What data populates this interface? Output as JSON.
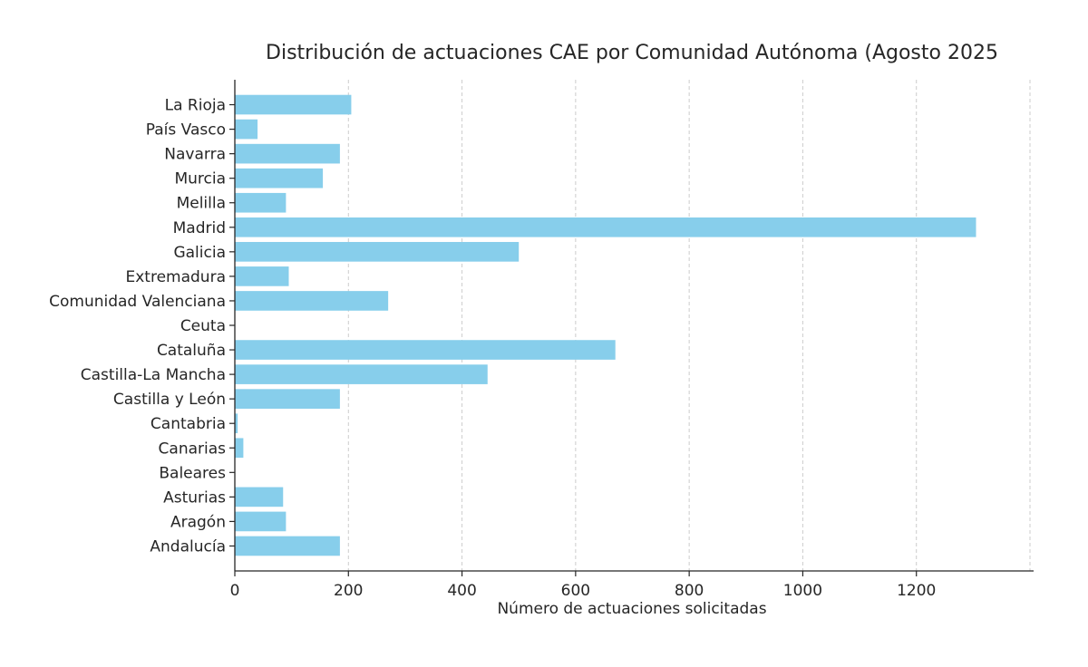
{
  "chart_data": {
    "type": "bar",
    "orientation": "horizontal",
    "title": "Distribución de actuaciones CAE por Comunidad Autónoma (Agosto 2025",
    "xlabel": "Número de actuaciones solicitadas",
    "ylabel": "",
    "categories": [
      "La Rioja",
      "País Vasco",
      "Navarra",
      "Murcia",
      "Melilla",
      "Madrid",
      "Galicia",
      "Extremadura",
      "Comunidad Valenciana",
      "Ceuta",
      "Cataluña",
      "Castilla-La Mancha",
      "Castilla y León",
      "Cantabria",
      "Canarias",
      "Baleares",
      "Asturias",
      "Aragón",
      "Andalucía"
    ],
    "values": [
      205,
      40,
      185,
      155,
      90,
      1305,
      500,
      95,
      270,
      0,
      670,
      445,
      185,
      5,
      15,
      0,
      85,
      90,
      185
    ],
    "categories_order": "top-to-bottom",
    "xlim": [
      0,
      1400
    ],
    "xticks": [
      0,
      200,
      400,
      600,
      800,
      1000,
      1200
    ],
    "grid": {
      "axis": "x",
      "style": "dashed",
      "color": "#cccccc"
    },
    "legend": {
      "visible": false
    },
    "colors": {
      "bar": "#87CEEB",
      "text": "#262626",
      "spine": "#262626",
      "background": "#ffffff"
    }
  }
}
